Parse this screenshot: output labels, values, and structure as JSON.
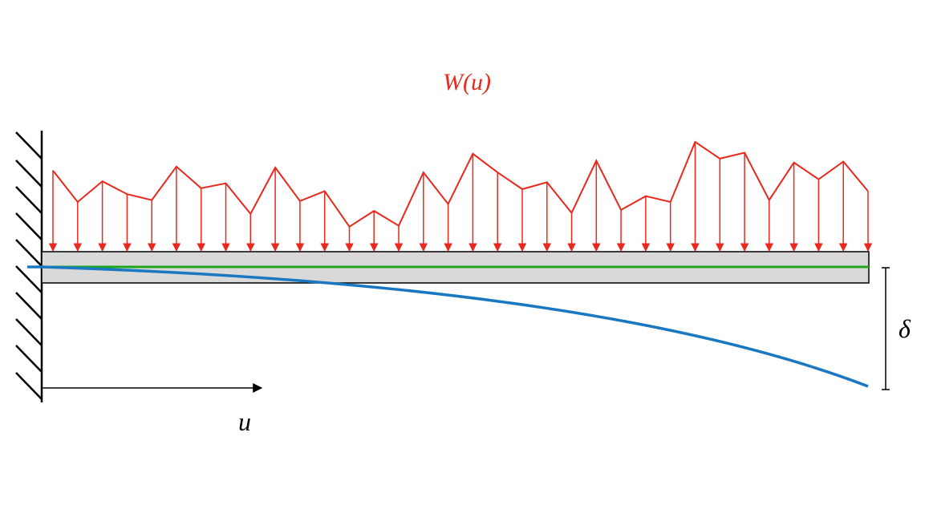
{
  "labels": {
    "load": "W(u)",
    "position": "u",
    "deflection": "δ"
  },
  "colors": {
    "load": "#e8291c",
    "deflected_beam": "#1a78c2",
    "neutral_axis": "#1fa51f",
    "beam_fill": "#d9d9d9",
    "structure": "#000000"
  },
  "load_profile_heights": [
    0.71,
    0.39,
    0.6,
    0.47,
    0.41,
    0.75,
    0.53,
    0.58,
    0.27,
    0.74,
    0.4,
    0.5,
    0.14,
    0.3,
    0.15,
    0.69,
    0.37,
    0.88,
    0.69,
    0.52,
    0.59,
    0.28,
    0.81,
    0.31,
    0.45,
    0.39,
    1.0,
    0.83,
    0.89,
    0.41,
    0.79,
    0.62,
    0.8,
    0.5
  ]
}
